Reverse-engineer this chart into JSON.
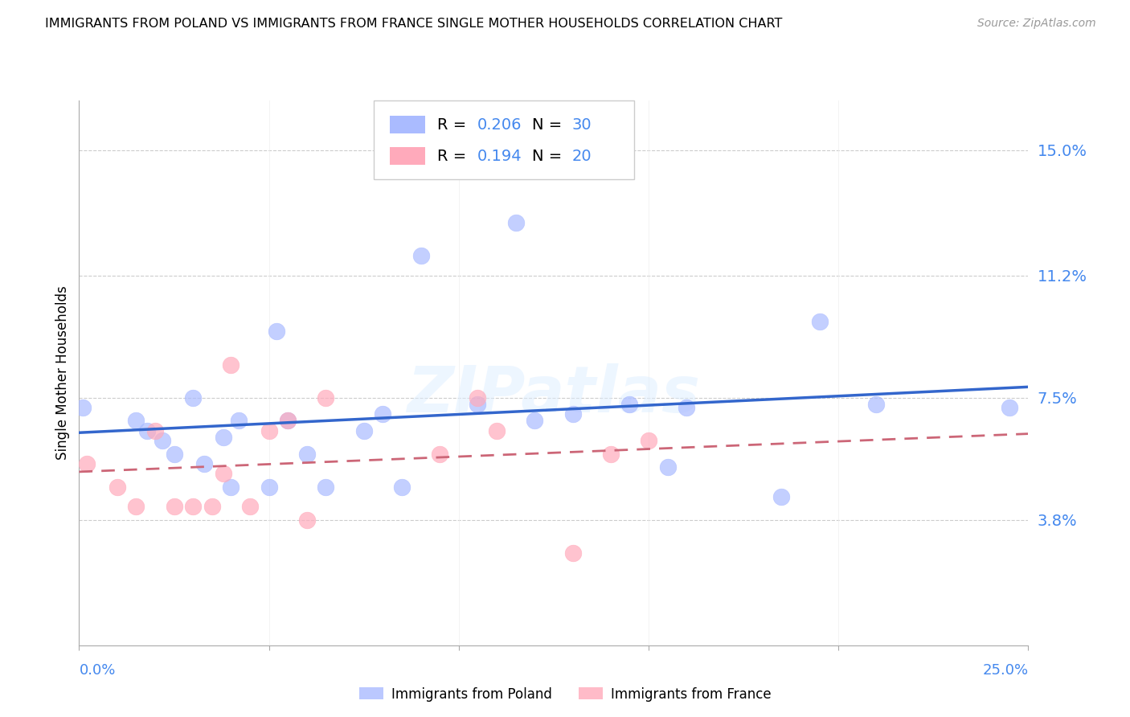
{
  "title": "IMMIGRANTS FROM POLAND VS IMMIGRANTS FROM FRANCE SINGLE MOTHER HOUSEHOLDS CORRELATION CHART",
  "source": "Source: ZipAtlas.com",
  "ylabel": "Single Mother Households",
  "ytick_labels": [
    "3.8%",
    "7.5%",
    "11.2%",
    "15.0%"
  ],
  "ytick_values": [
    0.038,
    0.075,
    0.112,
    0.15
  ],
  "xlim": [
    0.0,
    0.25
  ],
  "ylim": [
    0.0,
    0.165
  ],
  "poland_R": "0.206",
  "poland_N": "30",
  "france_R": "0.194",
  "france_N": "20",
  "poland_color": "#aabbff",
  "france_color": "#ffaabb",
  "poland_line_color": "#3366cc",
  "france_line_color": "#cc6677",
  "watermark": "ZIPatlas",
  "blue_text_color": "#4488ee",
  "poland_scatter_x": [
    0.001,
    0.015,
    0.018,
    0.022,
    0.025,
    0.03,
    0.033,
    0.038,
    0.04,
    0.042,
    0.05,
    0.052,
    0.055,
    0.06,
    0.065,
    0.075,
    0.08,
    0.085,
    0.09,
    0.105,
    0.115,
    0.12,
    0.13,
    0.145,
    0.155,
    0.16,
    0.185,
    0.195,
    0.21,
    0.245
  ],
  "poland_scatter_y": [
    0.072,
    0.068,
    0.065,
    0.062,
    0.058,
    0.075,
    0.055,
    0.063,
    0.048,
    0.068,
    0.048,
    0.095,
    0.068,
    0.058,
    0.048,
    0.065,
    0.07,
    0.048,
    0.118,
    0.073,
    0.128,
    0.068,
    0.07,
    0.073,
    0.054,
    0.072,
    0.045,
    0.098,
    0.073,
    0.072
  ],
  "france_scatter_x": [
    0.002,
    0.01,
    0.015,
    0.02,
    0.025,
    0.03,
    0.035,
    0.038,
    0.04,
    0.045,
    0.05,
    0.055,
    0.06,
    0.065,
    0.095,
    0.105,
    0.11,
    0.13,
    0.14,
    0.15
  ],
  "france_scatter_y": [
    0.055,
    0.048,
    0.042,
    0.065,
    0.042,
    0.042,
    0.042,
    0.052,
    0.085,
    0.042,
    0.065,
    0.068,
    0.038,
    0.075,
    0.058,
    0.075,
    0.065,
    0.028,
    0.058,
    0.062
  ]
}
